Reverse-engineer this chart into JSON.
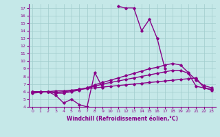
{
  "xlabel": "Windchill (Refroidissement éolien,°C)",
  "xlim": [
    -0.5,
    23.5
  ],
  "ylim": [
    4,
    17.5
  ],
  "xticks": [
    0,
    1,
    2,
    3,
    4,
    5,
    6,
    7,
    8,
    9,
    10,
    11,
    12,
    13,
    14,
    15,
    16,
    17,
    18,
    19,
    20,
    21,
    22,
    23
  ],
  "yticks": [
    4,
    5,
    6,
    7,
    8,
    9,
    10,
    11,
    12,
    13,
    14,
    15,
    16,
    17
  ],
  "bg_color": "#c5e8e8",
  "grid_color": "#a0cccc",
  "line_color": "#880088",
  "line_width": 1.0,
  "marker": "D",
  "marker_size": 1.8,
  "curves": [
    [
      6.0,
      6.0,
      6.0,
      5.5,
      4.5,
      5.0,
      4.3,
      4.0,
      8.5,
      6.5,
      null,
      17.2,
      17.0,
      17.0,
      14.0,
      15.5,
      13.0,
      9.0,
      null,
      null,
      null,
      null,
      null,
      null
    ],
    [
      6.0,
      6.0,
      6.0,
      5.8,
      5.8,
      6.0,
      6.2,
      6.5,
      6.9,
      7.2,
      7.5,
      7.8,
      8.1,
      8.4,
      8.7,
      9.0,
      9.2,
      9.5,
      9.7,
      9.5,
      8.5,
      7.5,
      6.8,
      6.5
    ],
    [
      6.0,
      6.0,
      6.0,
      5.9,
      6.0,
      6.1,
      6.3,
      6.5,
      6.7,
      7.0,
      7.2,
      7.4,
      7.6,
      7.8,
      8.0,
      8.2,
      8.4,
      8.6,
      8.8,
      8.8,
      8.4,
      6.7,
      6.5,
      6.3
    ],
    [
      5.8,
      5.9,
      6.0,
      6.1,
      6.1,
      6.2,
      6.3,
      6.4,
      6.5,
      6.6,
      6.7,
      6.8,
      6.9,
      7.0,
      7.1,
      7.2,
      7.3,
      7.4,
      7.5,
      7.6,
      7.7,
      7.8,
      6.5,
      6.2
    ]
  ]
}
